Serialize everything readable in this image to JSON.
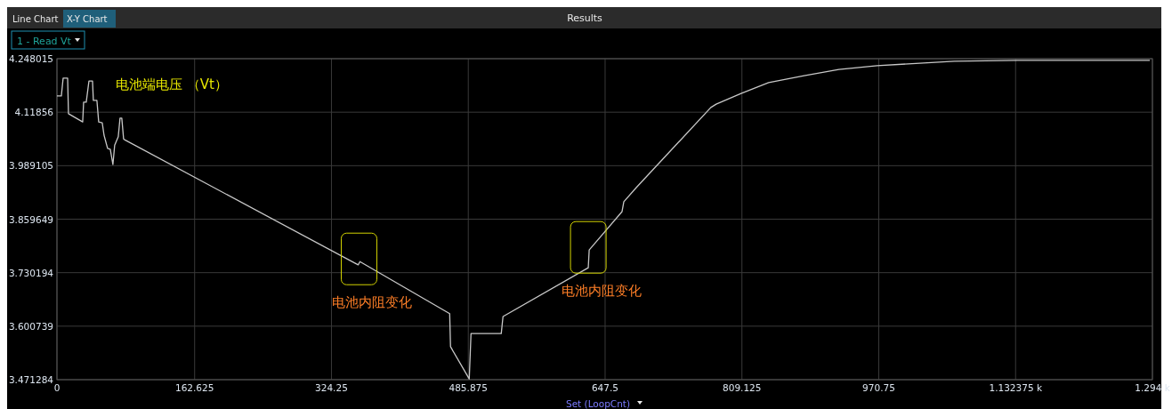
{
  "chart_data": {
    "type": "line",
    "title": "Results",
    "ylabel": "1 - Read Vt",
    "xlabel": "Set (LoopCnt)",
    "annotations": [
      "Line Chart",
      "X-Y Chart",
      "电池端电压 （Vt）",
      {
        "text": "电池内阻变化",
        "x": 357.9,
        "y": 3.757
      },
      {
        "text": "电池内阻变化",
        "x": 628.7,
        "y": 3.785
      }
    ],
    "x": [
      0,
      5.2,
      7.3,
      12.6,
      13.6,
      30.4,
      31.5,
      34.6,
      37.8,
      42.0,
      43.0,
      47.2,
      49.3,
      53.5,
      55.6,
      59.8,
      63.0,
      66.1,
      68.2,
      72.4,
      74.5,
      76.6,
      78.7,
      79.8,
      355.8,
      357.9,
      463.9,
      464.9,
      487.0,
      489.1,
      524.8,
      526.9,
      627.6,
      628.7,
      667.5,
      669.6,
      684.3,
      772.4,
      778.7,
      808.1,
      840.7,
      882.6,
      923.6,
      968.7,
      1019.1,
      1060.0,
      1134.5,
      1290.9
    ],
    "series": [
      {
        "color": "#c8c8c8",
        "values": [
          4.158,
          4.158,
          4.201,
          4.201,
          4.115,
          4.095,
          4.143,
          4.143,
          4.194,
          4.194,
          4.147,
          4.147,
          4.095,
          4.093,
          4.063,
          4.031,
          4.029,
          3.992,
          4.039,
          4.059,
          4.104,
          4.104,
          4.054,
          4.052,
          3.749,
          3.757,
          3.631,
          3.551,
          3.473,
          3.583,
          3.583,
          3.624,
          3.742,
          3.785,
          3.878,
          3.902,
          3.936,
          4.13,
          4.138,
          4.164,
          4.19,
          4.207,
          4.222,
          4.231,
          4.237,
          4.242,
          4.244,
          4.244
        ]
      }
    ],
    "xlim": [
      0,
      1294
    ],
    "ylim": [
      3.471284,
      4.248015
    ],
    "xticks": [
      0,
      162.625,
      324.25,
      485.875,
      647.5,
      809.125,
      970.75,
      {
        "value": 1132.375,
        "label": "1.132375 k"
      },
      {
        "value": 1294,
        "label": "1.294 k"
      }
    ],
    "yticks": [
      3.471284,
      3.600739,
      3.730194,
      3.859649,
      3.989105,
      4.11856,
      4.248015
    ],
    "grid": true,
    "marker": "none",
    "line_style": "solid"
  }
}
